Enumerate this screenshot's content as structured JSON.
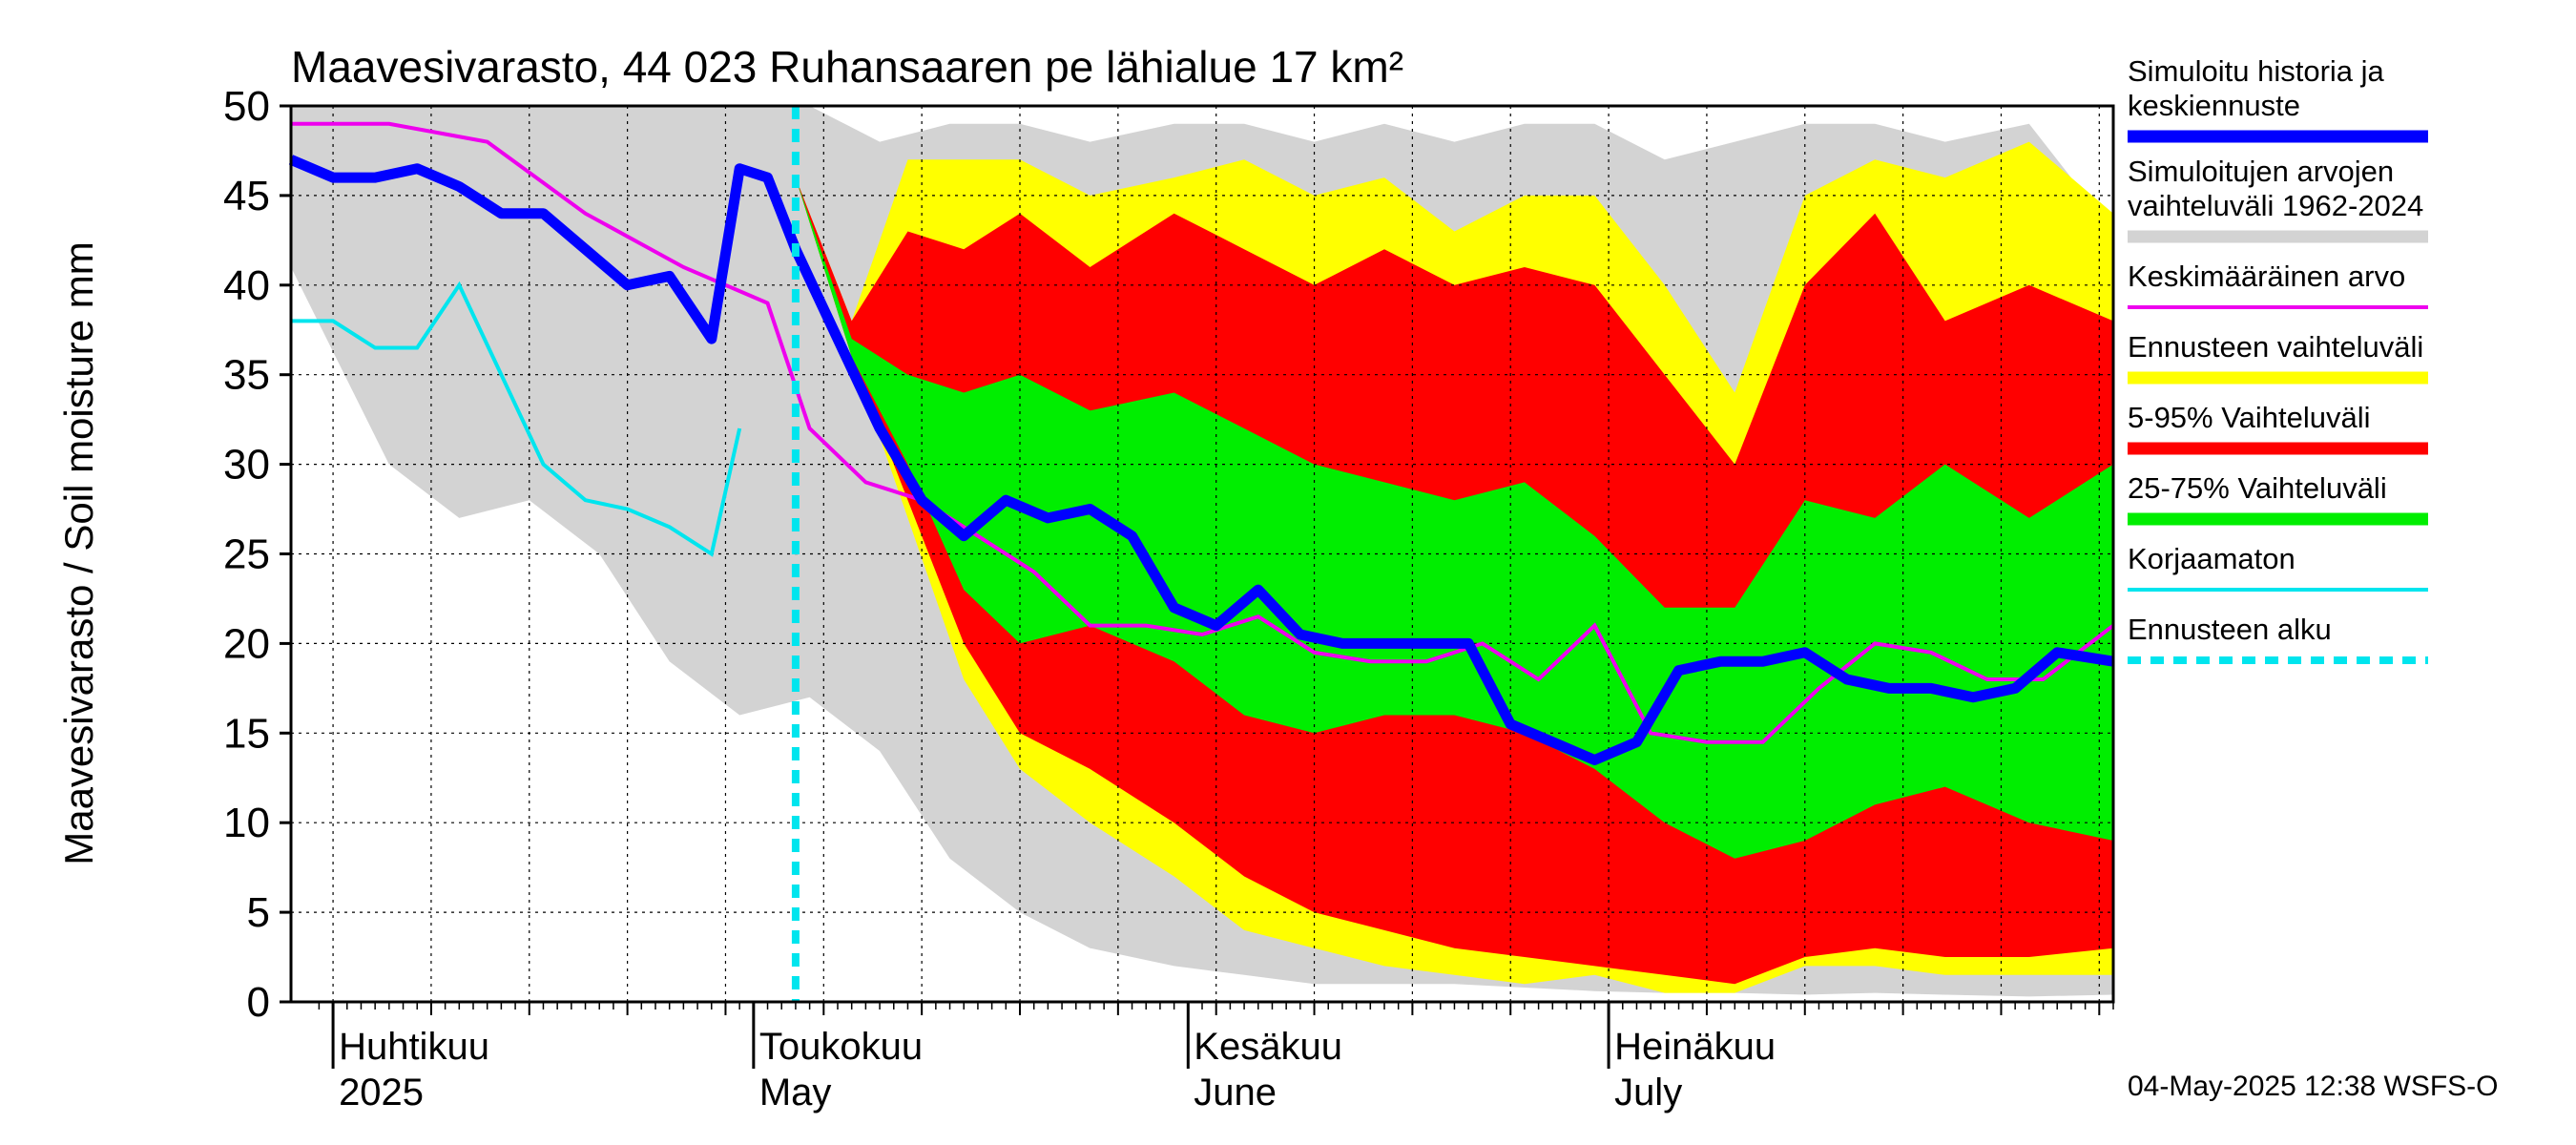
{
  "chart_data": {
    "type": "area",
    "title": "Maavesivarasto, 44 023 Ruhansaaren pe lähialue 17 km²",
    "ylabel": "Maavesivarasto / Soil moisture   mm",
    "ylim": [
      0,
      50
    ],
    "yticks": [
      "0",
      "5",
      "10",
      "15",
      "20",
      "25",
      "30",
      "35",
      "40",
      "45",
      "50"
    ],
    "x_range_days": [
      "2025-03-29",
      "2025-08-06"
    ],
    "month_labels": [
      {
        "fi": "Huhtikuu",
        "en": "2025",
        "date": "2025-04-01"
      },
      {
        "fi": "Toukokuu",
        "en": "May",
        "date": "2025-05-01"
      },
      {
        "fi": "Kesäkuu",
        "en": "June",
        "date": "2025-06-01"
      },
      {
        "fi": "Heinäkuu",
        "en": "July",
        "date": "2025-07-01"
      }
    ],
    "forecast_start": "2025-05-04",
    "timestamp": "04-May-2025 12:38 WSFS-O",
    "colors": {
      "history_band": "#d3d3d3",
      "forecast_range": "#ffff00",
      "p5_95": "#ff0000",
      "p25_75": "#00ee00",
      "median": "#0000ff",
      "mean": "#ee00ee",
      "uncorrected": "#00e5ee",
      "forecast_start": "#00e5ee"
    },
    "legend": [
      {
        "label": "Simuloitu historia ja keskiennuste",
        "color": "#0000ff",
        "style": "thick"
      },
      {
        "label": "Simuloitujen arvojen vaihteluväli 1962-2024",
        "color": "#d3d3d3",
        "style": "thick"
      },
      {
        "label": "Keskimääräinen arvo",
        "color": "#ee00ee",
        "style": "thin"
      },
      {
        "label": "Ennusteen vaihteluväli",
        "color": "#ffff00",
        "style": "thick"
      },
      {
        "label": "5-95% Vaihteluväli",
        "color": "#ff0000",
        "style": "thick"
      },
      {
        "label": "25-75% Vaihteluväli",
        "color": "#00ee00",
        "style": "thick"
      },
      {
        "label": "Korjaamaton",
        "color": "#00e5ee",
        "style": "thin"
      },
      {
        "label": "Ennusteen alku",
        "color": "#00e5ee",
        "style": "dashed"
      }
    ],
    "series": {
      "history_band": {
        "x": [
          "2025-03-29",
          "2025-04-05",
          "2025-04-10",
          "2025-04-15",
          "2025-04-20",
          "2025-04-25",
          "2025-04-30",
          "2025-05-05",
          "2025-05-10",
          "2025-05-15",
          "2025-05-20",
          "2025-05-25",
          "2025-05-31",
          "2025-06-05",
          "2025-06-10",
          "2025-06-15",
          "2025-06-20",
          "2025-06-25",
          "2025-06-30",
          "2025-07-05",
          "2025-07-10",
          "2025-07-15",
          "2025-07-20",
          "2025-07-25",
          "2025-07-31",
          "2025-08-06"
        ],
        "upper": [
          50,
          50,
          50,
          50,
          50,
          50,
          50,
          50,
          48,
          49,
          49,
          48,
          49,
          49,
          48,
          49,
          48,
          49,
          49,
          47,
          48,
          49,
          49,
          48,
          49,
          43
        ],
        "lower": [
          41,
          30,
          27,
          28,
          25,
          19,
          16,
          17,
          14,
          8,
          5,
          3,
          2,
          1.5,
          1,
          1,
          1,
          0.8,
          0.6,
          0.5,
          0.5,
          0.4,
          0.5,
          0.4,
          0.3,
          0.4
        ]
      },
      "forecast_range": {
        "x": [
          "2025-05-04",
          "2025-05-08",
          "2025-05-12",
          "2025-05-16",
          "2025-05-20",
          "2025-05-25",
          "2025-05-31",
          "2025-06-05",
          "2025-06-10",
          "2025-06-15",
          "2025-06-20",
          "2025-06-25",
          "2025-06-30",
          "2025-07-05",
          "2025-07-10",
          "2025-07-15",
          "2025-07-20",
          "2025-07-25",
          "2025-07-31",
          "2025-08-06"
        ],
        "upper": [
          46,
          38,
          47,
          47,
          47,
          45,
          46,
          47,
          45,
          46,
          43,
          45,
          45,
          40,
          34,
          45,
          47,
          46,
          48,
          44
        ],
        "lower": [
          46,
          36,
          27,
          18,
          13,
          10,
          7,
          4,
          3,
          2,
          1.5,
          1,
          1.5,
          0.5,
          0.5,
          2,
          2,
          1.5,
          1.5,
          1.5
        ]
      },
      "p5_95": {
        "x": [
          "2025-05-04",
          "2025-05-08",
          "2025-05-12",
          "2025-05-16",
          "2025-05-20",
          "2025-05-25",
          "2025-05-31",
          "2025-06-05",
          "2025-06-10",
          "2025-06-15",
          "2025-06-20",
          "2025-06-25",
          "2025-06-30",
          "2025-07-05",
          "2025-07-10",
          "2025-07-15",
          "2025-07-20",
          "2025-07-25",
          "2025-07-31",
          "2025-08-06"
        ],
        "upper": [
          46,
          38,
          43,
          42,
          44,
          41,
          44,
          42,
          40,
          42,
          40,
          41,
          40,
          35,
          30,
          40,
          44,
          38,
          40,
          38
        ],
        "lower": [
          46,
          36,
          28,
          20,
          15,
          13,
          10,
          7,
          5,
          4,
          3,
          2.5,
          2,
          1.5,
          1,
          2.5,
          3,
          2.5,
          2.5,
          3
        ]
      },
      "p25_75": {
        "x": [
          "2025-05-04",
          "2025-05-08",
          "2025-05-12",
          "2025-05-16",
          "2025-05-20",
          "2025-05-25",
          "2025-05-31",
          "2025-06-05",
          "2025-06-10",
          "2025-06-15",
          "2025-06-20",
          "2025-06-25",
          "2025-06-30",
          "2025-07-05",
          "2025-07-10",
          "2025-07-15",
          "2025-07-20",
          "2025-07-25",
          "2025-07-31",
          "2025-08-06"
        ],
        "upper": [
          46,
          37,
          35,
          34,
          35,
          33,
          34,
          32,
          30,
          29,
          28,
          29,
          26,
          22,
          22,
          28,
          27,
          30,
          27,
          30
        ],
        "lower": [
          46,
          36,
          30,
          23,
          20,
          21,
          19,
          16,
          15,
          16,
          16,
          15,
          13,
          10,
          8,
          9,
          11,
          12,
          10,
          9
        ]
      },
      "median": {
        "x": [
          "2025-03-29",
          "2025-04-01",
          "2025-04-04",
          "2025-04-07",
          "2025-04-10",
          "2025-04-13",
          "2025-04-16",
          "2025-04-19",
          "2025-04-22",
          "2025-04-25",
          "2025-04-28",
          "2025-04-30",
          "2025-05-02",
          "2025-05-04",
          "2025-05-07",
          "2025-05-10",
          "2025-05-13",
          "2025-05-16",
          "2025-05-19",
          "2025-05-22",
          "2025-05-25",
          "2025-05-28",
          "2025-05-31",
          "2025-06-03",
          "2025-06-06",
          "2025-06-09",
          "2025-06-12",
          "2025-06-15",
          "2025-06-18",
          "2025-06-21",
          "2025-06-24",
          "2025-06-27",
          "2025-06-30",
          "2025-07-03",
          "2025-07-06",
          "2025-07-09",
          "2025-07-12",
          "2025-07-15",
          "2025-07-18",
          "2025-07-21",
          "2025-07-24",
          "2025-07-27",
          "2025-07-30",
          "2025-08-02",
          "2025-08-06"
        ],
        "values": [
          47,
          46,
          46,
          46.5,
          45.5,
          44,
          44,
          42,
          40,
          40.5,
          37,
          46.5,
          46,
          42,
          37,
          32,
          28,
          26,
          28,
          27,
          27.5,
          26,
          22,
          21,
          23,
          20.5,
          20,
          20,
          20,
          20,
          15.5,
          14.5,
          13.5,
          14.5,
          18.5,
          19,
          19,
          19.5,
          18,
          17.5,
          17.5,
          17,
          17.5,
          19.5,
          19
        ]
      },
      "mean": {
        "x": [
          "2025-03-29",
          "2025-04-05",
          "2025-04-12",
          "2025-04-19",
          "2025-04-26",
          "2025-05-02",
          "2025-05-05",
          "2025-05-09",
          "2025-05-13",
          "2025-05-17",
          "2025-05-21",
          "2025-05-25",
          "2025-05-29",
          "2025-06-02",
          "2025-06-06",
          "2025-06-10",
          "2025-06-14",
          "2025-06-18",
          "2025-06-22",
          "2025-06-26",
          "2025-06-30",
          "2025-07-04",
          "2025-07-08",
          "2025-07-12",
          "2025-07-16",
          "2025-07-20",
          "2025-07-24",
          "2025-07-28",
          "2025-08-01",
          "2025-08-06"
        ],
        "values": [
          49,
          49,
          48,
          44,
          41,
          39,
          32,
          29,
          28,
          26,
          24,
          21,
          21,
          20.5,
          21.5,
          19.5,
          19,
          19,
          20,
          18,
          21,
          15,
          14.5,
          14.5,
          17.5,
          20,
          19.5,
          18,
          18,
          21
        ]
      },
      "uncorrected": {
        "x": [
          "2025-03-29",
          "2025-04-01",
          "2025-04-04",
          "2025-04-07",
          "2025-04-10",
          "2025-04-13",
          "2025-04-16",
          "2025-04-19",
          "2025-04-22",
          "2025-04-25",
          "2025-04-28",
          "2025-04-30"
        ],
        "values": [
          38,
          38,
          36.5,
          36.5,
          40,
          35,
          30,
          28,
          27.5,
          26.5,
          25,
          32
        ]
      }
    }
  }
}
